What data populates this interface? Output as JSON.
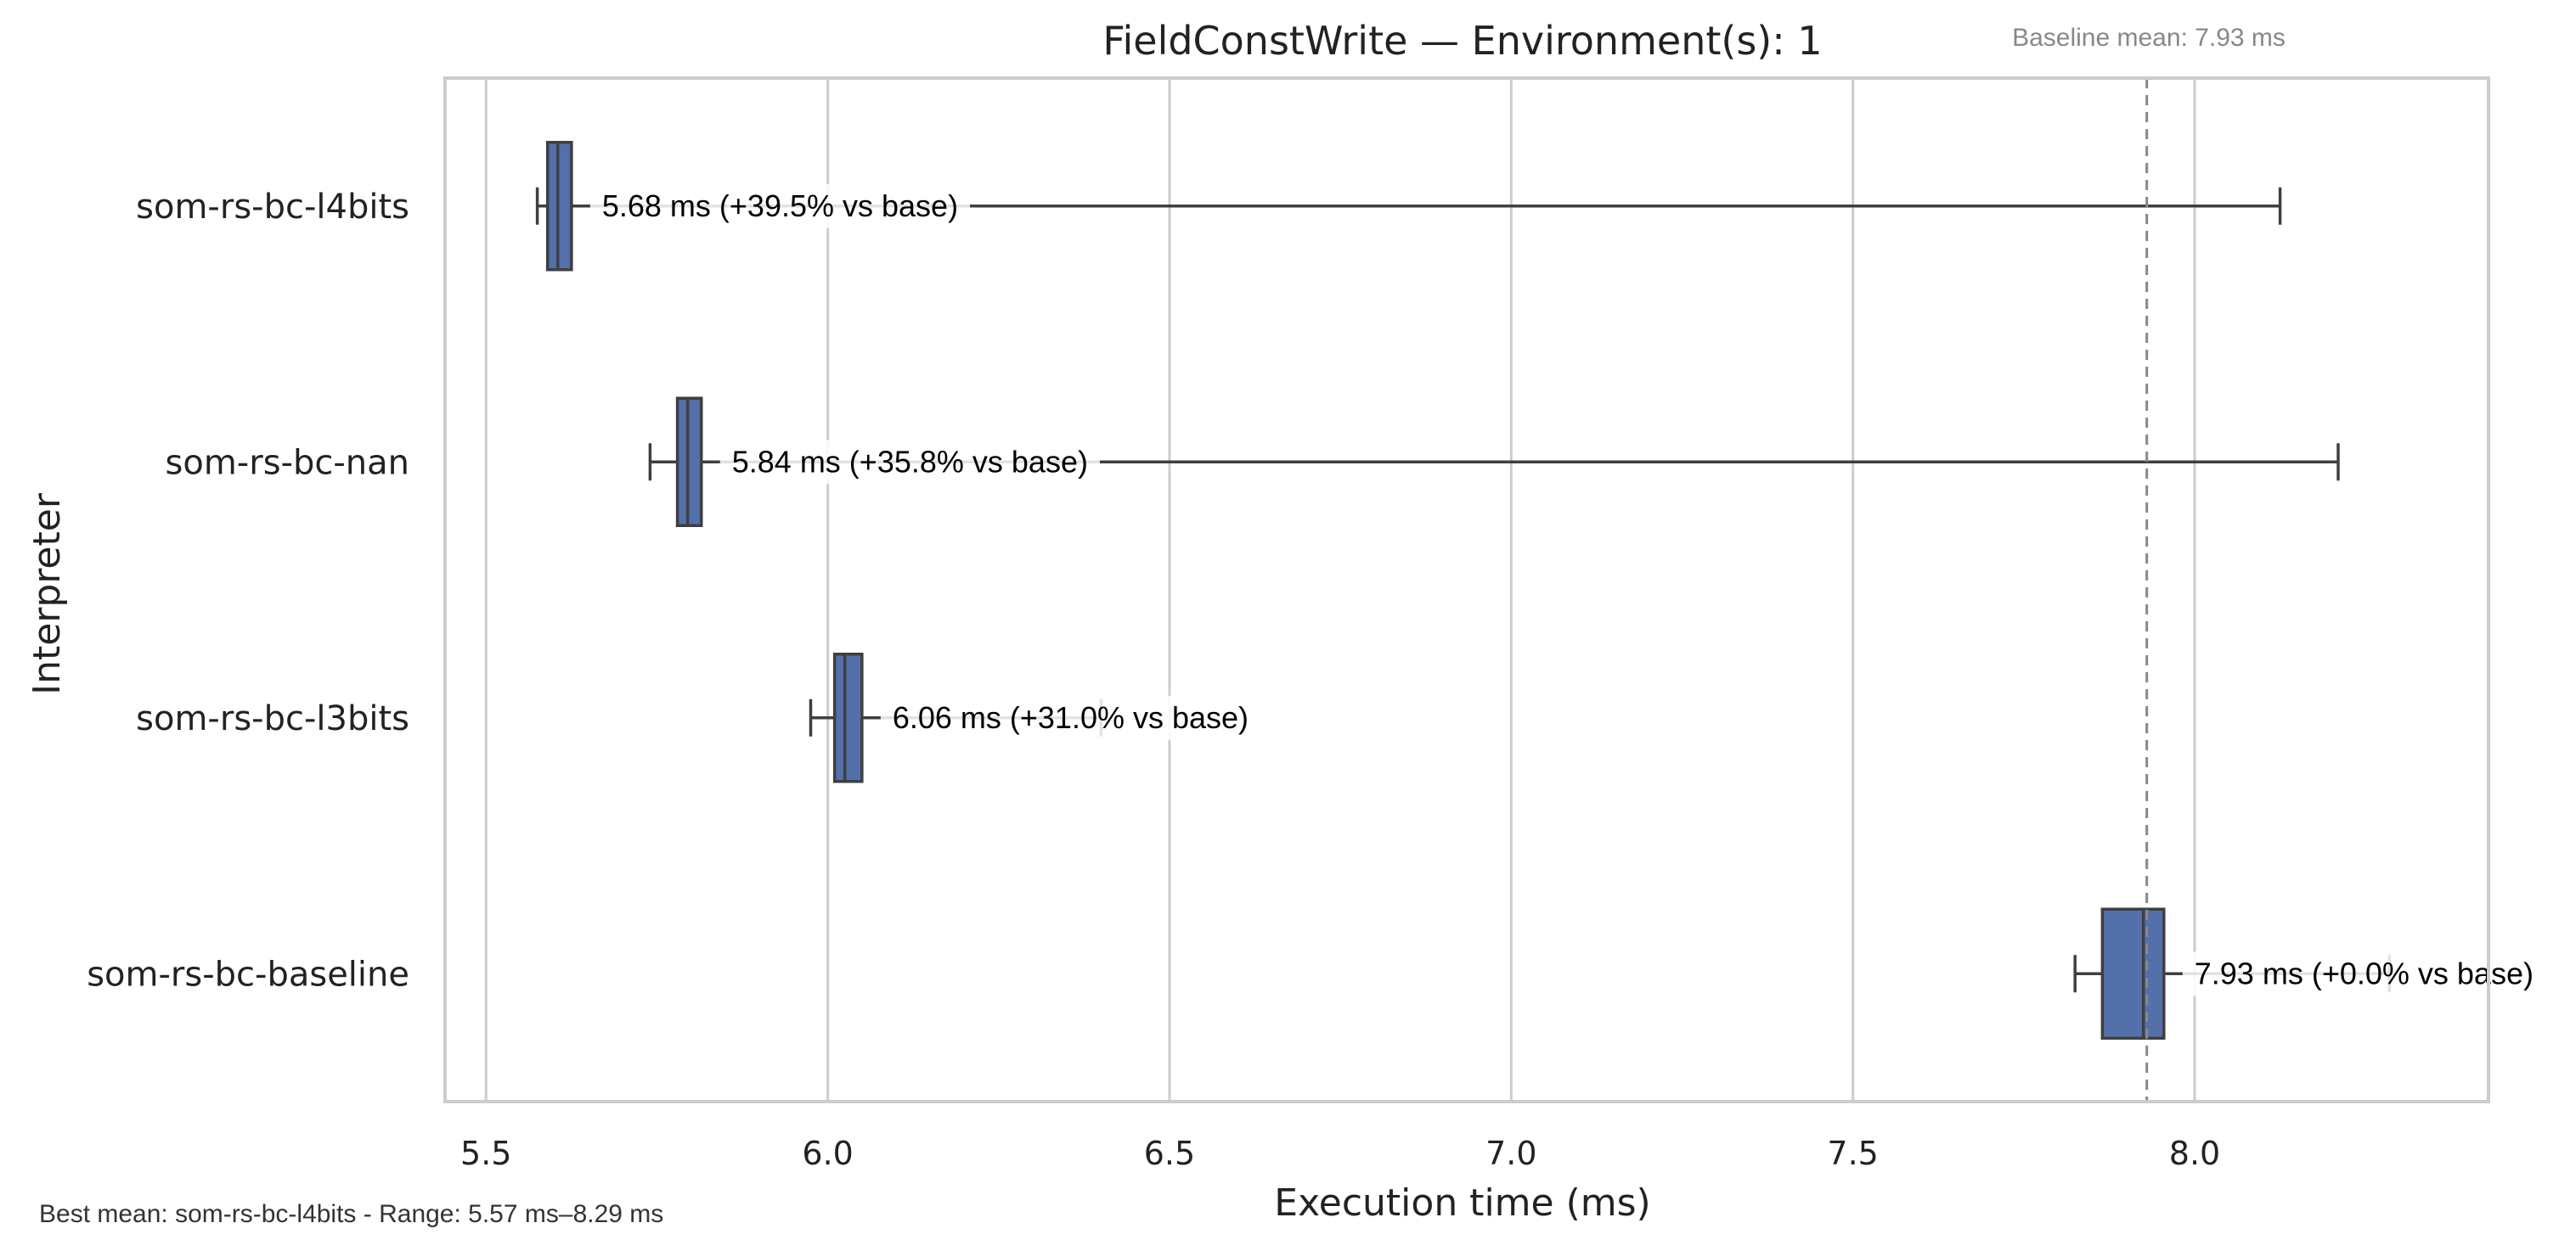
{
  "chart_data": {
    "type": "box",
    "orientation": "horizontal",
    "title": "FieldConstWrite — Environment(s): 1",
    "xlabel": "Execution time (ms)",
    "ylabel": "Interpreter",
    "xlim": [
      5.44,
      8.43
    ],
    "xticks": [
      "5.5",
      "6.0",
      "6.5",
      "7.0",
      "7.5",
      "8.0"
    ],
    "grid": "vertical",
    "box_color": "#5470ab",
    "line_color": "#3f3f3f",
    "baseline": {
      "value": 7.93,
      "label": "Baseline mean: 7.93 ms"
    },
    "footer": "Best mean: som-rs-bc-l4bits - Range: 5.57 ms–8.29 ms",
    "series": [
      {
        "category": "som-rs-bc-l4bits",
        "whisker_low": 5.575,
        "q1": 5.59,
        "median": 5.605,
        "q3": 5.625,
        "whisker_high": 8.125,
        "annotation": "5.68 ms  (+39.5% vs base)"
      },
      {
        "category": "som-rs-bc-nan",
        "whisker_low": 5.74,
        "q1": 5.78,
        "median": 5.795,
        "q3": 5.815,
        "whisker_high": 8.21,
        "annotation": "5.84 ms  (+35.8% vs base)"
      },
      {
        "category": "som-rs-bc-l3bits",
        "whisker_low": 5.975,
        "q1": 6.01,
        "median": 6.025,
        "q3": 6.05,
        "whisker_high": 6.4,
        "annotation": "6.06 ms  (+31.0% vs base)"
      },
      {
        "category": "som-rs-bc-baseline",
        "whisker_low": 7.825,
        "q1": 7.865,
        "median": 7.925,
        "q3": 7.955,
        "whisker_high": 8.285,
        "annotation": "7.93 ms  (+0.0% vs base)"
      }
    ]
  }
}
